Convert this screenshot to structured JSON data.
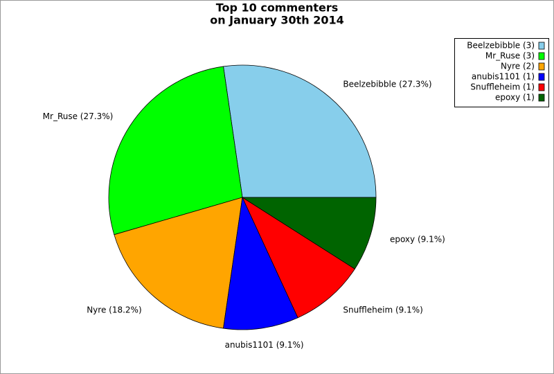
{
  "chart_data": {
    "type": "pie",
    "title": [
      "Top 10 commenters",
      "on January 30th 2014"
    ],
    "slice_labels": [
      "Beelzebibble (27.3%)",
      "Mr_Ruse (27.3%)",
      "Nyre (18.2%)",
      "anubis1101 (9.1%)",
      "Snuffleheim (9.1%)",
      "epoxy (9.1%)"
    ],
    "legend_labels": [
      "Beelzebibble (3)",
      "Mr_Ruse (3)",
      "Nyre (2)",
      "anubis1101 (1)",
      "Snuffleheim (1)",
      "epoxy (1)"
    ],
    "values": [
      3,
      3,
      2,
      1,
      1,
      1
    ],
    "colors": [
      "#87ceeb",
      "#00ff00",
      "#ffa500",
      "#0000ff",
      "#ff0000",
      "#006400"
    ],
    "legend": "top-right"
  }
}
